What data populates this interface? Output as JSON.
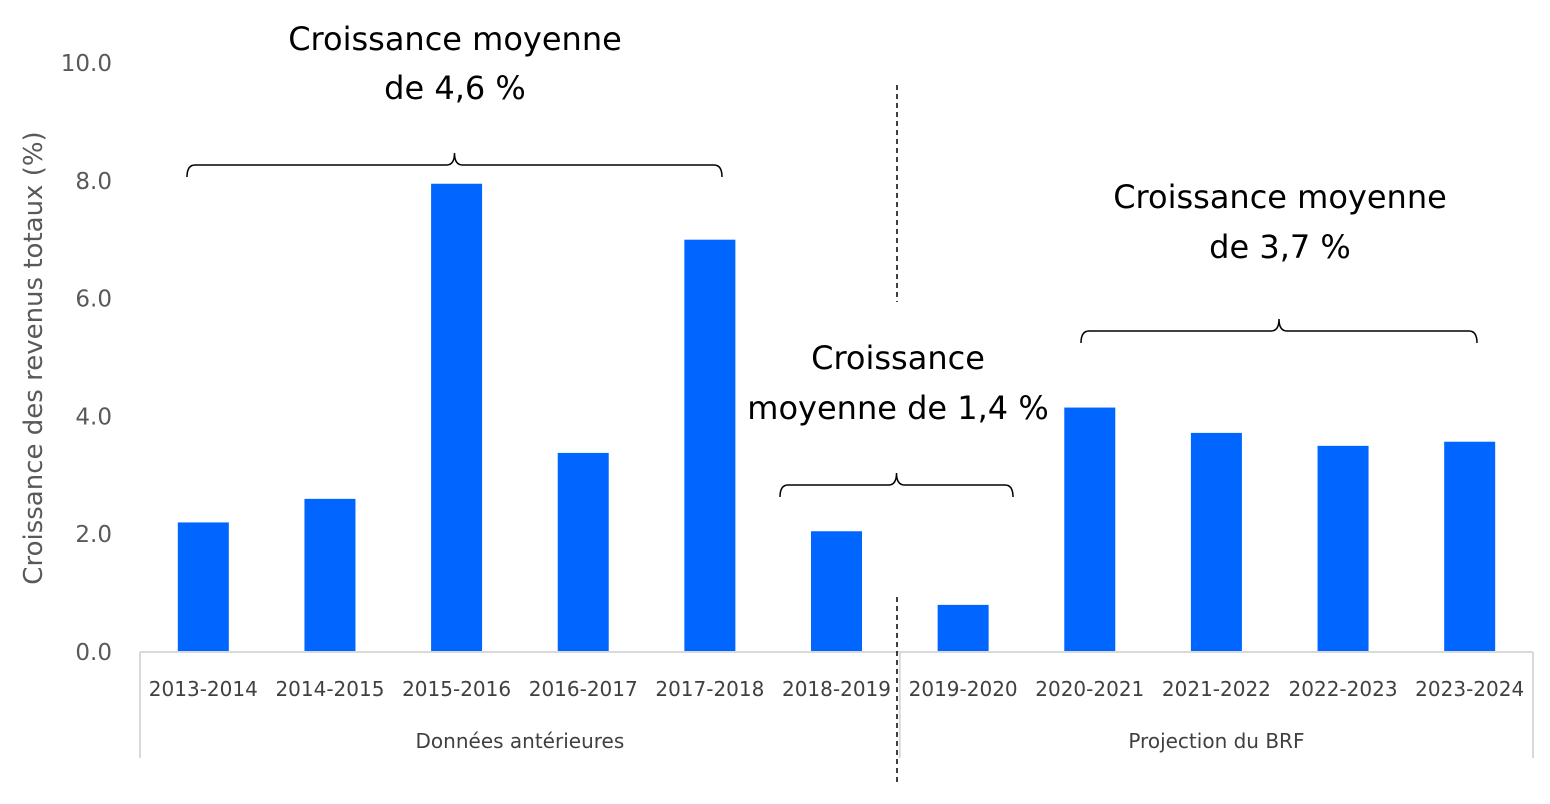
{
  "chart_data": {
    "type": "bar",
    "ylabel": "Croissance des revenus totaux (%)",
    "ylim": [
      0,
      10
    ],
    "yticks": [
      "0.0",
      "2.0",
      "4.0",
      "6.0",
      "8.0",
      "10.0"
    ],
    "grid": false,
    "bar_color": "#0066ff",
    "categories": [
      "2013-2014",
      "2014-2015",
      "2015-2016",
      "2016-2017",
      "2017-2018",
      "2018-2019",
      "2019-2020",
      "2020-2021",
      "2021-2022",
      "2022-2023",
      "2023-2024"
    ],
    "values": [
      2.2,
      2.6,
      7.95,
      3.38,
      7.0,
      2.05,
      0.8,
      4.15,
      3.72,
      3.5,
      3.57
    ],
    "groups": [
      {
        "label": "Données antérieures"
      },
      {
        "label": "Projection du BRF"
      }
    ],
    "annotations": [
      {
        "line1": "Croissance moyenne",
        "line2": "de 4,6 %"
      },
      {
        "line1": "Croissance",
        "line2": "moyenne de 1,4 %"
      },
      {
        "line1": "Croissance moyenne",
        "line2": "de 3,7 %"
      }
    ]
  }
}
